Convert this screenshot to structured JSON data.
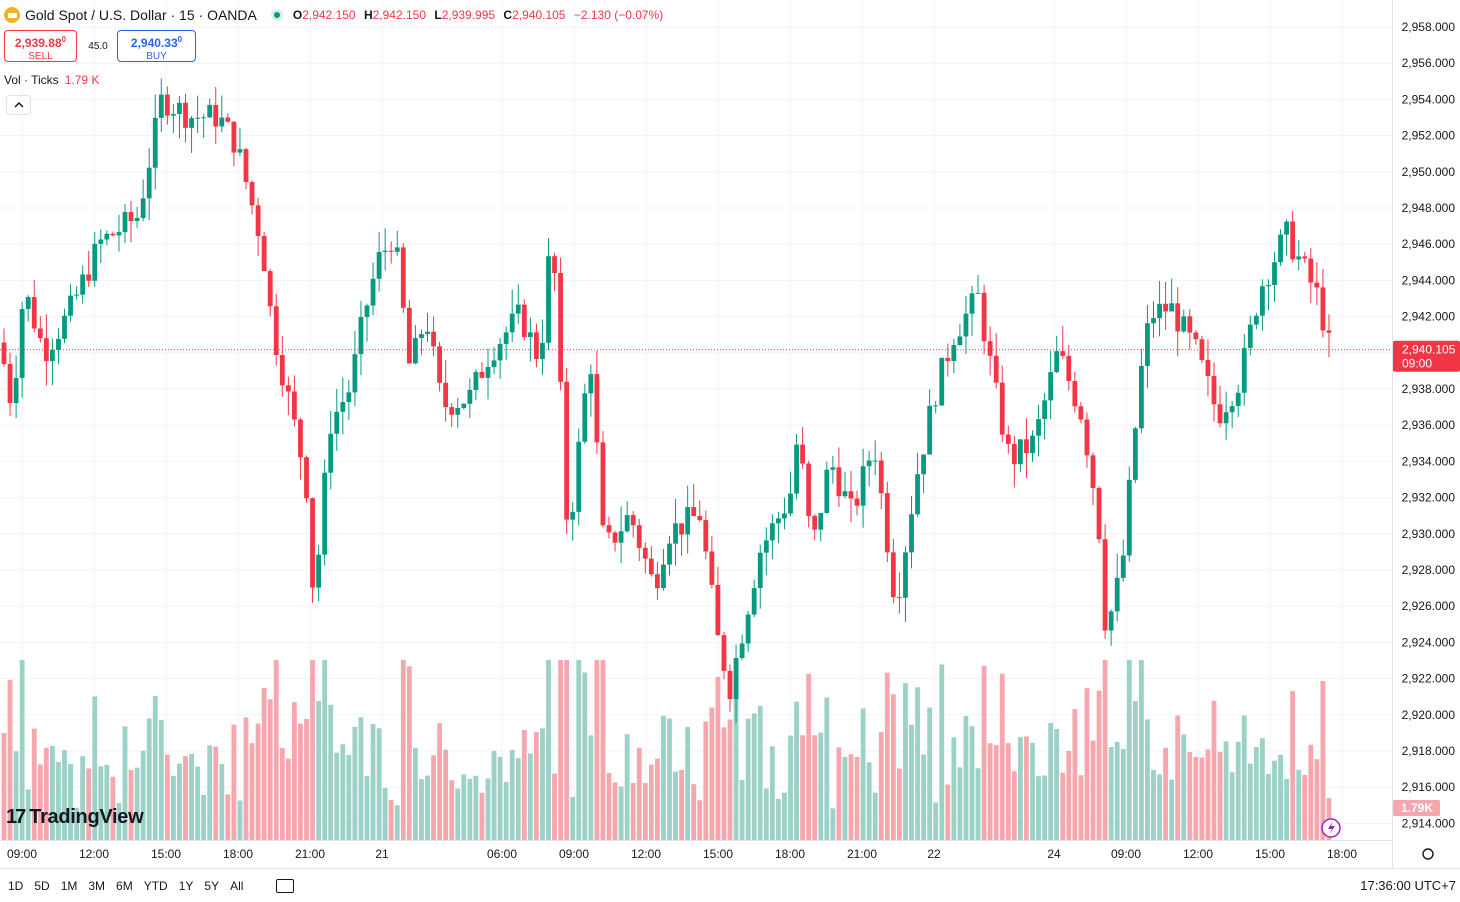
{
  "header": {
    "symbol_title": "Gold Spot / U.S. Dollar · 15 · OANDA",
    "ohlc": [
      {
        "k": "O",
        "v": "2,942.150"
      },
      {
        "k": "H",
        "v": "2,942.150"
      },
      {
        "k": "L",
        "v": "2,939.995"
      },
      {
        "k": "C",
        "v": "2,940.105"
      },
      {
        "k": "",
        "v": "−2.130 (−0.07%)"
      }
    ]
  },
  "trade": {
    "sell_price": "2,939.88",
    "sell_price_sup": "0",
    "sell_label": "SELL",
    "spread": "45.0",
    "buy_price": "2,940.33",
    "buy_price_sup": "0",
    "buy_label": "BUY"
  },
  "indicator": {
    "name": "Vol · Ticks",
    "value": "1.79 K",
    "collapse_icon": "chevron-up-icon"
  },
  "price_axis": {
    "labels": [
      "2,958.000",
      "2,956.000",
      "2,954.000",
      "2,952.000",
      "2,950.000",
      "2,948.000",
      "2,946.000",
      "2,944.000",
      "2,942.000",
      "2,940.000",
      "2,938.000",
      "2,936.000",
      "2,934.000",
      "2,932.000",
      "2,930.000",
      "2,928.000",
      "2,926.000",
      "2,924.000",
      "2,922.000",
      "2,920.000",
      "2,918.000",
      "2,916.000",
      "2,914.000"
    ],
    "current_price": "2,940.105",
    "countdown": "09:00",
    "volume_badge": "1.79K"
  },
  "time_axis": {
    "labels": [
      "09:00",
      "12:00",
      "15:00",
      "18:00",
      "21:00",
      "21",
      "06:00",
      "09:00",
      "12:00",
      "15:00",
      "18:00",
      "21:00",
      "22",
      "24",
      "09:00",
      "12:00",
      "15:00",
      "18:00"
    ]
  },
  "ranges": [
    "1D",
    "5D",
    "1M",
    "3M",
    "6M",
    "YTD",
    "1Y",
    "5Y",
    "All"
  ],
  "clock": "17:36:00 UTC+7",
  "brand": "TradingView",
  "colors": {
    "up": "#089981",
    "down": "#f23645",
    "up_vol": "#9bd1c6",
    "down_vol": "#f6a6ad",
    "grid": "#f0f3fa"
  },
  "chart_data": {
    "type": "candlestick",
    "interval": "15",
    "y_range": [
      2913,
      2959
    ],
    "sample_candles_close": [
      2937.5,
      2938.0,
      2943.5,
      2939.5,
      2947.5,
      2954.0,
      2952.0,
      2948.5,
      2941.5,
      2926.0,
      2938.5,
      2946.0,
      2941.5,
      2935.5,
      2939.5,
      2943.5,
      2946.5,
      2930.0,
      2937.5,
      2928.5,
      2929.5,
      2923.5,
      2921.0,
      2929.5,
      2935.5,
      2929.5,
      2935.5,
      2926.5,
      2939.5,
      2941.5,
      2933.5,
      2936.5,
      2939.5,
      2924.5,
      2928.5,
      2938.0,
      2942.5,
      2936.5,
      2943.5,
      2945.5,
      2941.0,
      2940.1
    ],
    "volume_max_k": 4.0,
    "last_volume": "1.79K"
  }
}
